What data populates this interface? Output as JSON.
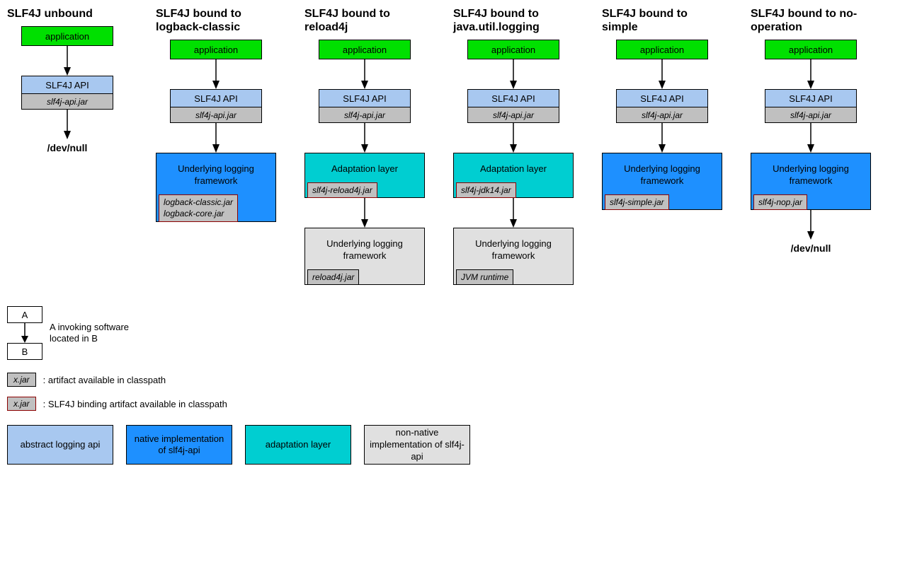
{
  "colors": {
    "application": "#00e000",
    "api": "#a8c8f0",
    "jar": "#c0c0c0",
    "native": "#1e90ff",
    "adaptation": "#00ced1",
    "nonnative": "#e0e0e0",
    "binding_border": "#8b0000"
  },
  "columns": [
    {
      "title": "SLF4J unbound",
      "app": "application",
      "api": "SLF4J API",
      "api_jar": "slf4j-api.jar",
      "end_text": "/dev/null"
    },
    {
      "title": "SLF4J bound to logback-classic",
      "app": "application",
      "api": "SLF4J API",
      "api_jar": "slf4j-api.jar",
      "framework": {
        "label": "Underlying logging framework",
        "bg": "native",
        "jar": "logback-classic.jar\nlogback-core.jar",
        "binding": true
      }
    },
    {
      "title": "SLF4J bound to reload4j",
      "app": "application",
      "api": "SLF4J API",
      "api_jar": "slf4j-api.jar",
      "framework": {
        "label": "Adaptation layer",
        "bg": "adaptation",
        "jar": "slf4j-reload4j.jar",
        "binding": true
      },
      "framework2": {
        "label": "Underlying logging framework",
        "bg": "nonnative",
        "jar": "reload4j.jar",
        "binding": false
      }
    },
    {
      "title": "SLF4J bound to java.util.logging",
      "app": "application",
      "api": "SLF4J API",
      "api_jar": "slf4j-api.jar",
      "framework": {
        "label": "Adaptation layer",
        "bg": "adaptation",
        "jar": "slf4j-jdk14.jar",
        "binding": true
      },
      "framework2": {
        "label": "Underlying logging framework",
        "bg": "nonnative",
        "jar": "JVM runtime",
        "binding": false
      }
    },
    {
      "title": "SLF4J bound to simple",
      "app": "application",
      "api": "SLF4J API",
      "api_jar": "slf4j-api.jar",
      "framework": {
        "label": "Underlying logging framework",
        "bg": "native",
        "jar": "slf4j-simple.jar",
        "binding": true
      }
    },
    {
      "title": "SLF4J bound to no-operation",
      "app": "application",
      "api": "SLF4J API",
      "api_jar": "slf4j-api.jar",
      "framework": {
        "label": "Underlying logging framework",
        "bg": "native",
        "jar": "slf4j-nop.jar",
        "binding": true
      },
      "end_text": "/dev/null"
    }
  ],
  "legend": {
    "ab": {
      "a": "A",
      "b": "B",
      "text": "A invoking software located in B"
    },
    "jar_plain": {
      "label": "x.jar",
      "text": ": artifact available in classpath"
    },
    "jar_binding": {
      "label": "x.jar",
      "text": ": SLF4J binding artifact available in classpath"
    },
    "colors": [
      {
        "bg": "api",
        "text": "abstract logging api"
      },
      {
        "bg": "native",
        "text": "native implementation of slf4j-api"
      },
      {
        "bg": "adaptation",
        "text": "adaptation layer"
      },
      {
        "bg": "nonnative",
        "text": "non-native implementation of slf4j-api"
      }
    ]
  }
}
